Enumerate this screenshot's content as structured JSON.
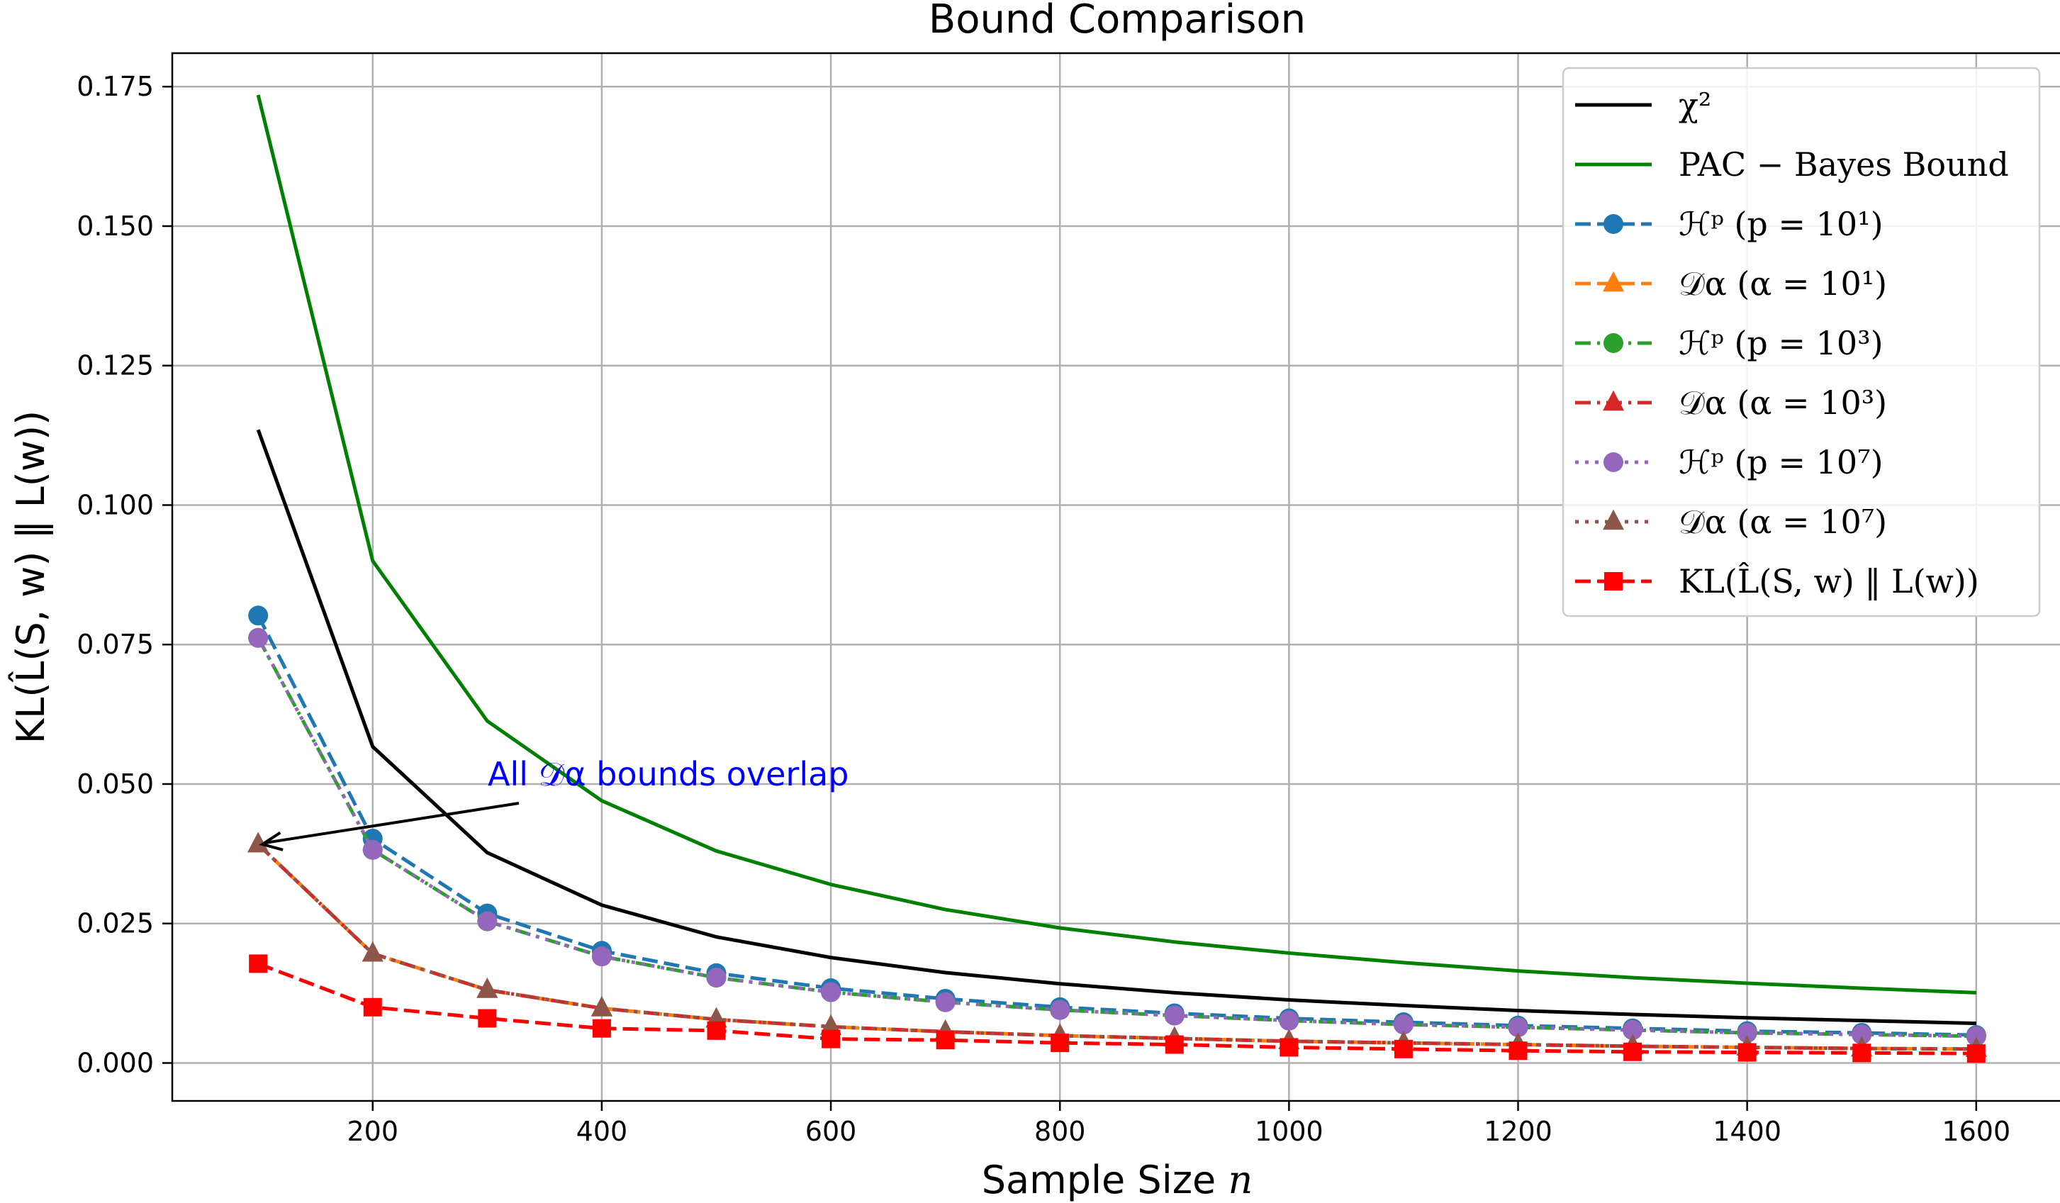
{
  "chart_data": {
    "type": "line",
    "title": "Bound Comparison",
    "xlabel": "Sample Size n",
    "ylabel": "KL(L̂(S, w) ‖ L(w))",
    "x": [
      100,
      200,
      300,
      400,
      500,
      600,
      700,
      800,
      900,
      1000,
      1100,
      1200,
      1300,
      1400,
      1500,
      1600
    ],
    "xlim": [
      25,
      1675
    ],
    "ylim": [
      -0.0068,
      0.181
    ],
    "xticks": [
      "200",
      "400",
      "600",
      "800",
      "1000",
      "1200",
      "1400",
      "1600"
    ],
    "yticks": [
      "0.000",
      "0.025",
      "0.050",
      "0.075",
      "0.100",
      "0.125",
      "0.150",
      "0.175"
    ],
    "grid": true,
    "legend_position": "top-right",
    "series": [
      {
        "name": "χ²",
        "color": "#000000",
        "dash": "solid",
        "marker": "none",
        "values": [
          0.1135,
          0.0567,
          0.0377,
          0.0283,
          0.0226,
          0.0189,
          0.0162,
          0.0142,
          0.0126,
          0.0113,
          0.0103,
          0.0094,
          0.0087,
          0.0081,
          0.0076,
          0.0071
        ]
      },
      {
        "name": "PAC − Bayes Bound",
        "color": "#008000",
        "dash": "solid",
        "marker": "none",
        "values": [
          0.1735,
          0.09,
          0.0613,
          0.047,
          0.038,
          0.032,
          0.0275,
          0.0242,
          0.0217,
          0.0197,
          0.018,
          0.0165,
          0.0153,
          0.0143,
          0.0134,
          0.0126
        ]
      },
      {
        "name": "ℋᵖ (p = 10¹)",
        "color": "#1f77b4",
        "dash": "dashed",
        "marker": "circle",
        "values": [
          0.0802,
          0.0402,
          0.0268,
          0.0201,
          0.0161,
          0.0134,
          0.0115,
          0.01,
          0.0089,
          0.008,
          0.0073,
          0.0067,
          0.0062,
          0.0057,
          0.0054,
          0.005
        ]
      },
      {
        "name": "𝒟α (α = 10¹)",
        "color": "#ff7f0e",
        "dash": "dashed",
        "marker": "triangle",
        "values": [
          0.0392,
          0.0196,
          0.0131,
          0.0098,
          0.0078,
          0.0065,
          0.0056,
          0.0049,
          0.0044,
          0.0039,
          0.0036,
          0.0033,
          0.003,
          0.0028,
          0.0026,
          0.0025
        ]
      },
      {
        "name": "ℋᵖ (p = 10³)",
        "color": "#2ca02c",
        "dash": "dashdot",
        "marker": "circle",
        "values": [
          0.0762,
          0.0382,
          0.0254,
          0.0191,
          0.0153,
          0.0127,
          0.0109,
          0.0095,
          0.0085,
          0.0076,
          0.0069,
          0.0064,
          0.0059,
          0.0054,
          0.0051,
          0.0048
        ]
      },
      {
        "name": "𝒟α (α = 10³)",
        "color": "#d62728",
        "dash": "dashdot",
        "marker": "triangle",
        "values": [
          0.0392,
          0.0196,
          0.0131,
          0.0098,
          0.0078,
          0.0065,
          0.0056,
          0.0049,
          0.0044,
          0.0039,
          0.0036,
          0.0033,
          0.003,
          0.0028,
          0.0026,
          0.0025
        ]
      },
      {
        "name": "ℋᵖ (p = 10⁷)",
        "color": "#9467bd",
        "dash": "dotted",
        "marker": "circle",
        "values": [
          0.0762,
          0.0382,
          0.0254,
          0.0191,
          0.0153,
          0.0127,
          0.0109,
          0.0095,
          0.0085,
          0.0076,
          0.0069,
          0.0064,
          0.0059,
          0.0054,
          0.0051,
          0.0048
        ]
      },
      {
        "name": "𝒟α (α = 10⁷)",
        "color": "#8c564b",
        "dash": "dotted",
        "marker": "triangle",
        "values": [
          0.0392,
          0.0196,
          0.0131,
          0.0098,
          0.0078,
          0.0065,
          0.0056,
          0.0049,
          0.0044,
          0.0039,
          0.0036,
          0.0033,
          0.003,
          0.0028,
          0.0026,
          0.0025
        ]
      },
      {
        "name": "KL(L̂(S, w) ‖ L(w))",
        "color": "#ff0000",
        "dash": "dashed",
        "marker": "square",
        "values": [
          0.0178,
          0.01,
          0.008,
          0.0062,
          0.0058,
          0.0043,
          0.0041,
          0.0036,
          0.0033,
          0.0028,
          0.0025,
          0.0022,
          0.002,
          0.0019,
          0.0018,
          0.0017
        ]
      }
    ],
    "annotations": [
      {
        "text": "All 𝒟α bounds overlap",
        "color": "#0000ff",
        "arrow_to": {
          "x": 100,
          "y": 0.0392
        }
      }
    ]
  }
}
